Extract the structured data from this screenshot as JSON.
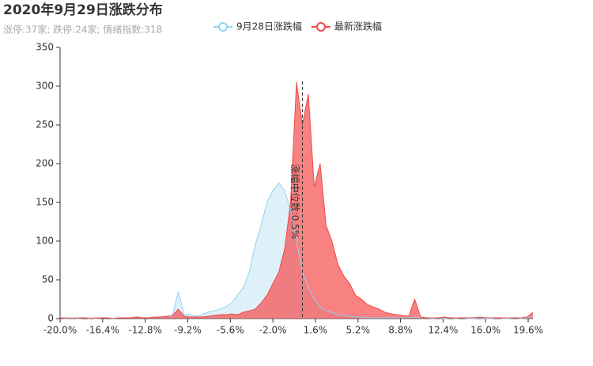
{
  "chart_data": {
    "type": "line",
    "area": true,
    "title": "2020年9月29日涨跌分布",
    "subtitle": "涨停:37家; 跌停:24家; 情绪指数:318",
    "x": [
      -20,
      -19.5,
      -19,
      -18.5,
      -18,
      -17.5,
      -17,
      -16.5,
      -16,
      -15.5,
      -15,
      -14.5,
      -14,
      -13.5,
      -13,
      -12.5,
      -12,
      -11.5,
      -11,
      -10.5,
      -10,
      -9.5,
      -9,
      -8.5,
      -8,
      -7.5,
      -7,
      -6.5,
      -6,
      -5.5,
      -5,
      -4.5,
      -4,
      -3.5,
      -3,
      -2.5,
      -2,
      -1.5,
      -1,
      -0.5,
      0,
      0.5,
      1,
      1.5,
      2,
      2.5,
      3,
      3.5,
      4,
      4.5,
      5,
      5.5,
      6,
      6.5,
      7,
      7.5,
      8,
      8.5,
      9,
      9.5,
      10,
      10.5,
      11,
      11.5,
      12,
      12.5,
      13,
      13.5,
      14,
      14.5,
      15,
      15.5,
      16,
      16.5,
      17,
      17.5,
      18,
      18.5,
      19,
      19.5,
      20
    ],
    "series": [
      {
        "name": "9月28日涨跌幅",
        "color": "#8fd3f0",
        "fill": "rgba(135,206,235,0.28)",
        "values": [
          1,
          0,
          1,
          0,
          1,
          1,
          0,
          1,
          1,
          0,
          1,
          1,
          1,
          2,
          1,
          1,
          2,
          2,
          3,
          3,
          35,
          5,
          5,
          3,
          5,
          8,
          10,
          12,
          15,
          20,
          30,
          40,
          60,
          95,
          120,
          150,
          165,
          175,
          165,
          140,
          100,
          60,
          40,
          25,
          15,
          10,
          8,
          5,
          4,
          3,
          2,
          2,
          1,
          1,
          1,
          1,
          1,
          1,
          1,
          1,
          2,
          1,
          1,
          0,
          1,
          0,
          1,
          0,
          1,
          0,
          0,
          1,
          0,
          0,
          1,
          0,
          0,
          1,
          0,
          1,
          2
        ]
      },
      {
        "name": "最新涨跌幅",
        "color": "#f04848",
        "fill": "rgba(245,80,80,0.72)",
        "values": [
          1,
          1,
          0,
          1,
          1,
          0,
          1,
          1,
          1,
          0,
          1,
          1,
          1,
          2,
          1,
          1,
          2,
          2,
          3,
          4,
          12,
          3,
          2,
          2,
          2,
          3,
          4,
          5,
          5,
          6,
          5,
          8,
          10,
          12,
          20,
          30,
          45,
          60,
          90,
          150,
          305,
          250,
          290,
          170,
          200,
          120,
          100,
          70,
          55,
          45,
          30,
          25,
          18,
          15,
          12,
          8,
          6,
          5,
          4,
          3,
          25,
          2,
          1,
          1,
          1,
          2,
          1,
          1,
          1,
          1,
          1,
          2,
          1,
          1,
          1,
          1,
          1,
          1,
          1,
          2,
          8
        ]
      }
    ],
    "median_line": {
      "x": 0.5,
      "label": "涨幅中位数:0.5%"
    },
    "xlim": [
      -20,
      20
    ],
    "xticks": [
      {
        "value": -20,
        "label": "-20.0%"
      },
      {
        "value": -16.4,
        "label": "-16.4%"
      },
      {
        "value": -12.8,
        "label": "-12.8%"
      },
      {
        "value": -9.2,
        "label": "-9.2%"
      },
      {
        "value": -5.6,
        "label": "-5.6%"
      },
      {
        "value": -2,
        "label": "-2.0%"
      },
      {
        "value": 1.6,
        "label": "1.6%"
      },
      {
        "value": 5.2,
        "label": "5.2%"
      },
      {
        "value": 8.8,
        "label": "8.8%"
      },
      {
        "value": 12.4,
        "label": "12.4%"
      },
      {
        "value": 16,
        "label": "16.0%"
      },
      {
        "value": 19.6,
        "label": "19.6%"
      }
    ],
    "ylim": [
      0,
      350
    ],
    "yticks": [
      0,
      50,
      100,
      150,
      200,
      250,
      300,
      350
    ],
    "legend": "top"
  }
}
